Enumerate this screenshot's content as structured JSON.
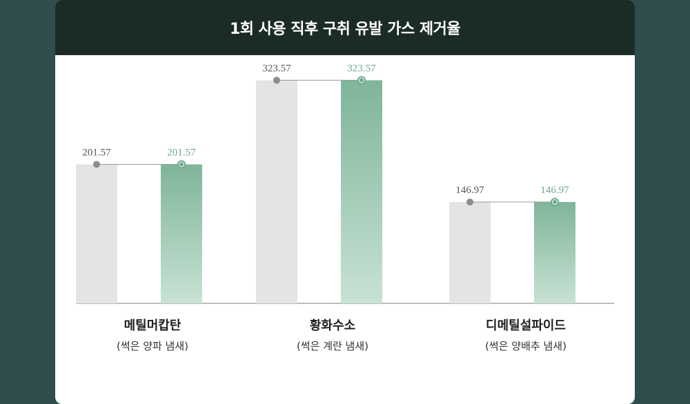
{
  "title": "1회 사용 직후 구취 유발 가스 제거율",
  "colors": {
    "page_background": "#2f4d4a",
    "header_background": "#1b2b27",
    "before_bar": "#e4e4e4",
    "after_bar_top": "#7fb59a",
    "after_bar_bottom": "#c8e2d4",
    "before_marker": "#8c8c8c",
    "after_marker": "#6aa98a",
    "after_label": "#6aa98a",
    "before_label": "#555555",
    "axis": "#777777"
  },
  "chart_data": {
    "type": "bar",
    "title": "1회 사용 직후 구취 유발 가스 제거율",
    "grid": false,
    "legend": "none",
    "categories": [
      {
        "name": "메틸머캅탄",
        "sub": "(썩은 양파 냄새)"
      },
      {
        "name": "황화수소",
        "sub": "(썩은 계란 냄새)"
      },
      {
        "name": "디메틸설파이드",
        "sub": "(썩은 양배추 냄새)"
      }
    ],
    "series": [
      {
        "values": [
          201.57,
          323.57,
          146.97
        ],
        "labels": [
          "201.57",
          "323.57",
          "146.97"
        ]
      },
      {
        "values": [
          201.57,
          323.57,
          146.97
        ],
        "labels": [
          "201.57",
          "323.57",
          "146.97"
        ]
      }
    ],
    "ylim": [
      0,
      400
    ]
  }
}
